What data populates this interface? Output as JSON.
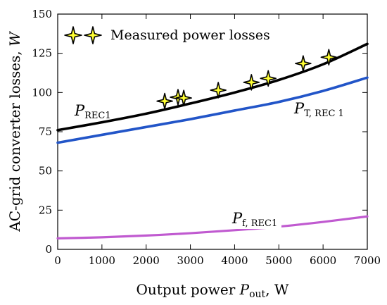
{
  "chart_data": {
    "type": "line",
    "xlabel": {
      "prefix": "Output power ",
      "var": "P",
      "sub": "out",
      "suffix": ", W"
    },
    "ylabel": {
      "text": "AC-grid converter losses, ",
      "unit": "W"
    },
    "xlim": [
      0,
      7000
    ],
    "ylim": [
      0,
      150
    ],
    "xticks": [
      0,
      1000,
      2000,
      3000,
      4000,
      5000,
      6000,
      7000
    ],
    "yticks": [
      0,
      25,
      50,
      75,
      100,
      125,
      150
    ],
    "grid": false,
    "series": [
      {
        "name_var": "P",
        "name_sub": "REC1",
        "color": "#000000",
        "x": [
          0,
          1000,
          2000,
          3000,
          4000,
          5000,
          6000,
          7000
        ],
        "y": [
          76,
          81,
          86.5,
          93,
          100,
          108,
          118,
          131
        ]
      },
      {
        "name_var": "P",
        "name_sub": "T, REC 1",
        "color": "#2255c8",
        "x": [
          0,
          1000,
          2000,
          3000,
          4000,
          5000,
          6000,
          7000
        ],
        "y": [
          68,
          73,
          78,
          83,
          88.5,
          94,
          101,
          109.5
        ]
      },
      {
        "name_var": "P",
        "name_sub": "f, REC1",
        "color": "#c05ad0",
        "x": [
          0,
          1000,
          2000,
          3000,
          4000,
          5000,
          6000,
          7000
        ],
        "y": [
          7,
          7.7,
          8.8,
          10.3,
          12.2,
          14.5,
          17.5,
          21
        ]
      }
    ],
    "measured": {
      "legend": "Measured power losses",
      "marker_color": "#ffff33",
      "points": [
        {
          "x": 2420,
          "y": 94.5
        },
        {
          "x": 2720,
          "y": 97
        },
        {
          "x": 2850,
          "y": 96.5
        },
        {
          "x": 3630,
          "y": 101.5
        },
        {
          "x": 4380,
          "y": 106.5
        },
        {
          "x": 4760,
          "y": 109
        },
        {
          "x": 5550,
          "y": 118.5
        },
        {
          "x": 6130,
          "y": 122.5
        }
      ]
    },
    "legend_position": "top-left"
  }
}
